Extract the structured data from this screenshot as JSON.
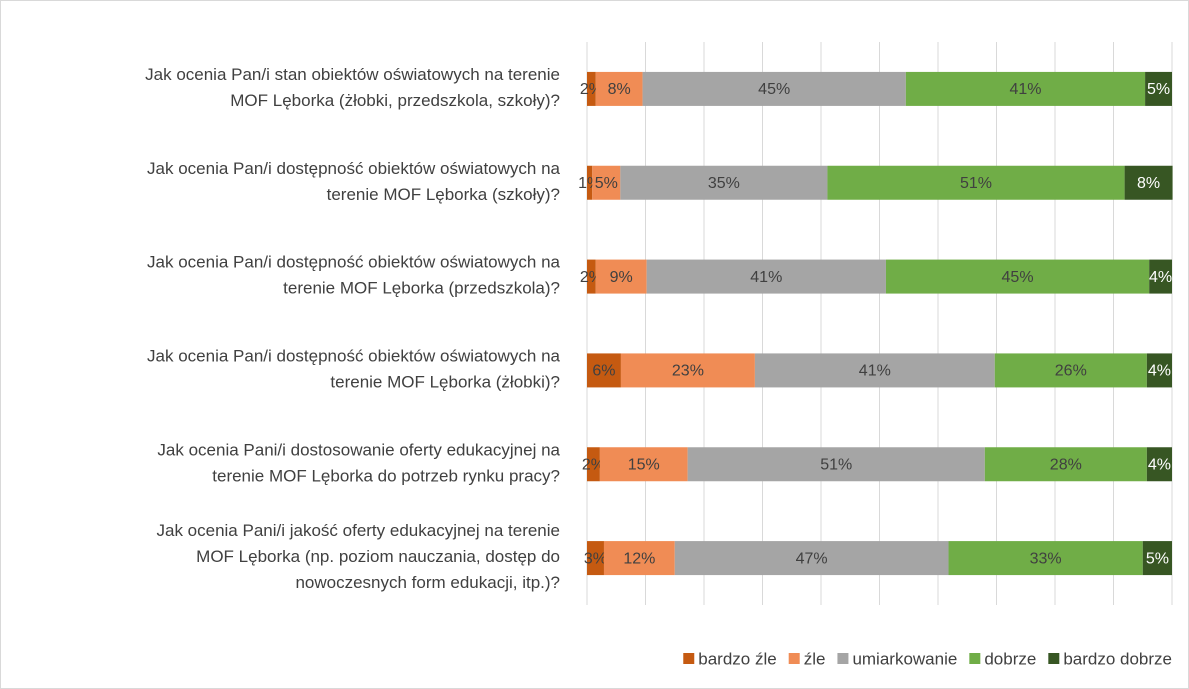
{
  "chart_data": {
    "type": "stacked-bar-horizontal",
    "categories": [
      "Jak ocenia Pan/i stan obiektów oświatowych na terenie\nMOF Lęborka (żłobki, przedszkola, szkoły)?",
      "Jak ocenia Pan/i dostępność obiektów oświatowych na\nterenie MOF Lęborka (szkoły)?",
      "Jak ocenia Pan/i dostępność obiektów oświatowych na\nterenie MOF Lęborka (przedszkola)?",
      "Jak ocenia Pan/i dostępność obiektów oświatowych na\nterenie MOF Lęborka (żłobki)?",
      "Jak ocenia Pani/i dostosowanie oferty edukacyjnej na\nterenie MOF Lęborka do potrzeb rynku pracy?",
      "Jak ocenia Pani/i jakość oferty edukacyjnej na terenie\nMOF Lęborka (np. poziom nauczania, dostęp do\nnowoczesnych form edukacji, itp.)?"
    ],
    "series": [
      {
        "name": "bardzo źle",
        "color": "#c55a11",
        "values": [
          1.5,
          0.9,
          1.5,
          5.8,
          2.2,
          2.9
        ],
        "value_labels": [
          "2%",
          "1%",
          "2%",
          "6%",
          "2%",
          "3%"
        ]
      },
      {
        "name": "źle",
        "color": "#f08c55",
        "values": [
          8,
          4.8,
          8.7,
          22.9,
          15,
          12.1
        ],
        "value_labels": [
          "8%",
          "5%",
          "9%",
          "23%",
          "15%",
          "12%"
        ]
      },
      {
        "name": "umiarkowanie",
        "color": "#a5a5a5",
        "values": [
          45,
          35.4,
          40.9,
          41,
          50.8,
          46.8
        ],
        "value_labels": [
          "45%",
          "35%",
          "41%",
          "41%",
          "51%",
          "47%"
        ]
      },
      {
        "name": "dobrze",
        "color": "#70ad47",
        "values": [
          40.9,
          50.8,
          45,
          26,
          27.7,
          33.2
        ],
        "value_labels": [
          "41%",
          "51%",
          "45%",
          "26%",
          "28%",
          "33%"
        ]
      },
      {
        "name": "bardzo dobrze",
        "color": "#375623",
        "values": [
          4.6,
          8.2,
          3.9,
          4.3,
          4.3,
          5
        ],
        "value_labels": [
          "5%",
          "8%",
          "4%",
          "4%",
          "4%",
          "5%"
        ]
      }
    ],
    "xlim": [
      0,
      100
    ],
    "xticks": [
      0,
      10,
      20,
      30,
      40,
      50,
      60,
      70,
      80,
      90,
      100
    ],
    "grid": true,
    "legend": "bottom"
  }
}
